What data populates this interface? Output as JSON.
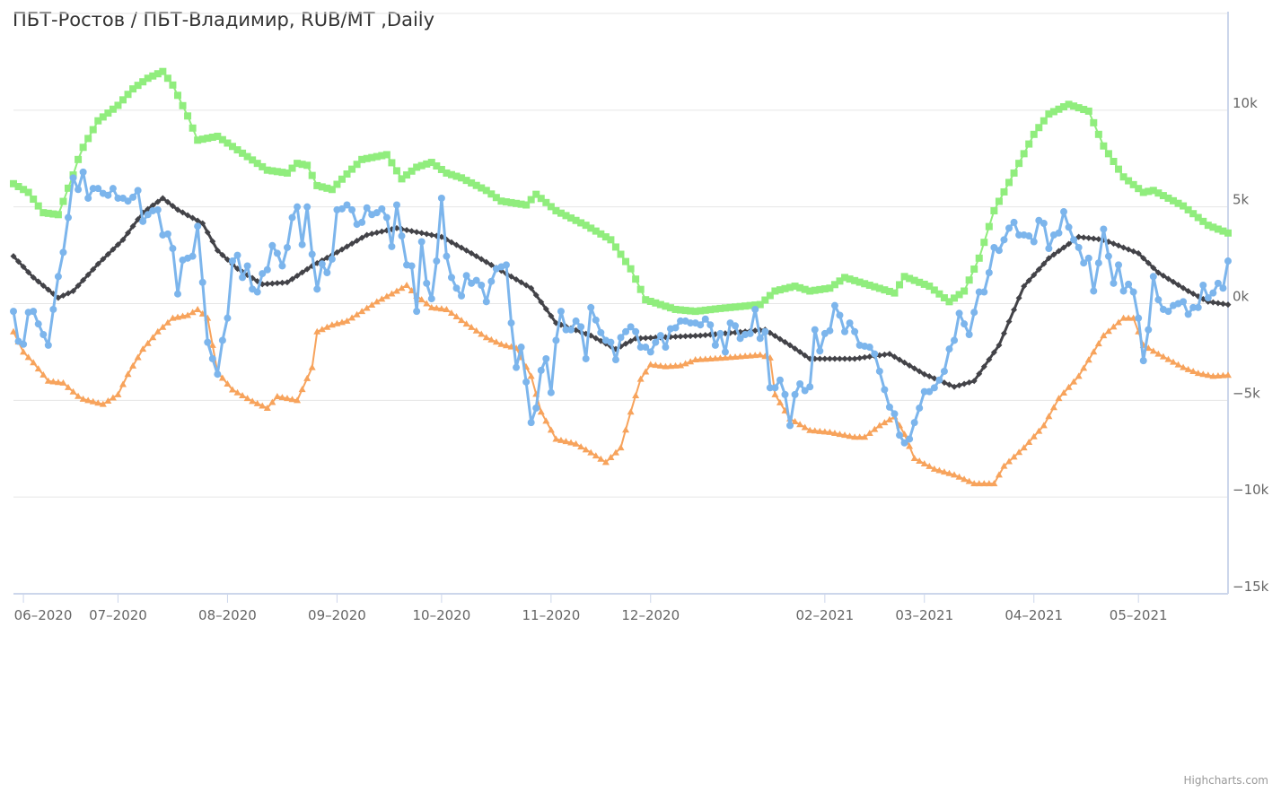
{
  "chart_data": {
    "type": "line",
    "title": "ПБТ-Ростов / ПБТ-Владимир, RUB/MT ,Daily",
    "xlabel": "",
    "ylabel": "",
    "x_type": "ordinal trading-day index",
    "x_range": [
      0,
      244
    ],
    "ylim": [
      -15000,
      15000
    ],
    "y_ticks": [
      {
        "value": 10000,
        "label": "10k"
      },
      {
        "value": 5000,
        "label": "5k"
      },
      {
        "value": 0,
        "label": "0k"
      },
      {
        "value": -5000,
        "label": "-5k"
      },
      {
        "value": -10000,
        "label": "-10k"
      },
      {
        "value": -15000,
        "label": "-15k"
      }
    ],
    "x_ticks": [
      {
        "index": 2,
        "label": "06-2020"
      },
      {
        "index": 21,
        "label": "07-2020"
      },
      {
        "index": 43,
        "label": "08-2020"
      },
      {
        "index": 65,
        "label": "09-2020"
      },
      {
        "index": 86,
        "label": "10-2020"
      },
      {
        "index": 108,
        "label": "11-2020"
      },
      {
        "index": 128,
        "label": "12-2020"
      },
      {
        "index": 163,
        "label": "02-2021"
      },
      {
        "index": 183,
        "label": "03-2021"
      },
      {
        "index": 205,
        "label": "04-2021"
      },
      {
        "index": 226,
        "label": "05-2021"
      }
    ],
    "grid": true,
    "legend": "none",
    "series": [
      {
        "id": "upper-band",
        "color": "#90ed7d",
        "marker": "square",
        "points": [
          [
            0,
            6200
          ],
          [
            3,
            5750
          ],
          [
            6,
            4700
          ],
          [
            9,
            4600
          ],
          [
            12,
            6650
          ],
          [
            13.5,
            7850
          ],
          [
            17,
            9450
          ],
          [
            21,
            10250
          ],
          [
            24,
            11100
          ],
          [
            27,
            11650
          ],
          [
            30,
            12000
          ],
          [
            32,
            11300
          ],
          [
            35,
            9700
          ],
          [
            37,
            8450
          ],
          [
            41,
            8650
          ],
          [
            43,
            8300
          ],
          [
            47,
            7600
          ],
          [
            51,
            6900
          ],
          [
            55,
            6750
          ],
          [
            57,
            7250
          ],
          [
            59,
            7150
          ],
          [
            61,
            6100
          ],
          [
            64,
            5900
          ],
          [
            67,
            6700
          ],
          [
            70,
            7450
          ],
          [
            75,
            7700
          ],
          [
            78,
            6450
          ],
          [
            81,
            7050
          ],
          [
            84,
            7300
          ],
          [
            87,
            6750
          ],
          [
            90,
            6500
          ],
          [
            95,
            5850
          ],
          [
            98,
            5300
          ],
          [
            103,
            5100
          ],
          [
            105,
            5650
          ],
          [
            109,
            4800
          ],
          [
            115,
            4050
          ],
          [
            120,
            3300
          ],
          [
            124,
            1800
          ],
          [
            127,
            200
          ],
          [
            133,
            -300
          ],
          [
            137,
            -400
          ],
          [
            142,
            -250
          ],
          [
            150,
            -50
          ],
          [
            153,
            650
          ],
          [
            157,
            900
          ],
          [
            160,
            650
          ],
          [
            164,
            800
          ],
          [
            167,
            1350
          ],
          [
            172,
            950
          ],
          [
            177,
            550
          ],
          [
            179,
            1400
          ],
          [
            184,
            900
          ],
          [
            188,
            100
          ],
          [
            191,
            650
          ],
          [
            194,
            2350
          ],
          [
            197,
            4800
          ],
          [
            201,
            6750
          ],
          [
            205,
            8750
          ],
          [
            208,
            9800
          ],
          [
            212,
            10300
          ],
          [
            216,
            9950
          ],
          [
            219,
            8150
          ],
          [
            223,
            6550
          ],
          [
            227,
            5750
          ],
          [
            229,
            5850
          ],
          [
            235,
            5050
          ],
          [
            240,
            4050
          ],
          [
            244,
            3650
          ]
        ]
      },
      {
        "id": "lower-band",
        "color": "#f7a35c",
        "marker": "triangle",
        "points": [
          [
            0,
            -1450
          ],
          [
            2,
            -2500
          ],
          [
            4,
            -3050
          ],
          [
            7,
            -4000
          ],
          [
            10,
            -4100
          ],
          [
            13.5,
            -4900
          ],
          [
            18,
            -5200
          ],
          [
            21,
            -4700
          ],
          [
            23,
            -3650
          ],
          [
            26,
            -2350
          ],
          [
            29,
            -1450
          ],
          [
            32,
            -750
          ],
          [
            35,
            -600
          ],
          [
            37,
            -300
          ],
          [
            39,
            -750
          ],
          [
            41,
            -3550
          ],
          [
            44,
            -4450
          ],
          [
            48,
            -5050
          ],
          [
            51,
            -5400
          ],
          [
            53,
            -4800
          ],
          [
            57,
            -5000
          ],
          [
            60,
            -3300
          ],
          [
            61,
            -1450
          ],
          [
            64,
            -1100
          ],
          [
            67,
            -900
          ],
          [
            73,
            100
          ],
          [
            77,
            650
          ],
          [
            79,
            950
          ],
          [
            81,
            400
          ],
          [
            84,
            -200
          ],
          [
            87,
            -300
          ],
          [
            91,
            -1050
          ],
          [
            95,
            -1750
          ],
          [
            98,
            -2100
          ],
          [
            101,
            -2300
          ],
          [
            104,
            -3750
          ],
          [
            106,
            -5600
          ],
          [
            109,
            -7000
          ],
          [
            113,
            -7250
          ],
          [
            116,
            -7700
          ],
          [
            119,
            -8200
          ],
          [
            122,
            -7450
          ],
          [
            124,
            -5600
          ],
          [
            126,
            -3900
          ],
          [
            128,
            -3150
          ],
          [
            131,
            -3250
          ],
          [
            134,
            -3200
          ],
          [
            137,
            -2900
          ],
          [
            143,
            -2800
          ],
          [
            150,
            -2650
          ],
          [
            152,
            -2800
          ],
          [
            153,
            -4700
          ],
          [
            156,
            -5950
          ],
          [
            160,
            -6550
          ],
          [
            164,
            -6650
          ],
          [
            169,
            -6900
          ],
          [
            171,
            -6900
          ],
          [
            174,
            -6300
          ],
          [
            177,
            -5850
          ],
          [
            179,
            -6750
          ],
          [
            181,
            -8000
          ],
          [
            185,
            -8550
          ],
          [
            189,
            -8850
          ],
          [
            193,
            -9300
          ],
          [
            197,
            -9300
          ],
          [
            199,
            -8400
          ],
          [
            203,
            -7450
          ],
          [
            207,
            -6300
          ],
          [
            210,
            -4900
          ],
          [
            214,
            -3750
          ],
          [
            219,
            -1650
          ],
          [
            223,
            -750
          ],
          [
            225,
            -750
          ],
          [
            227,
            -2150
          ],
          [
            230,
            -2600
          ],
          [
            235,
            -3300
          ],
          [
            238,
            -3600
          ],
          [
            241,
            -3750
          ],
          [
            244,
            -3700
          ]
        ]
      },
      {
        "id": "moving-average",
        "color": "#434348",
        "marker": "diamond",
        "points": [
          [
            0,
            2450
          ],
          [
            4,
            1350
          ],
          [
            9,
            300
          ],
          [
            12,
            650
          ],
          [
            17,
            2050
          ],
          [
            22,
            3300
          ],
          [
            26,
            4700
          ],
          [
            30,
            5450
          ],
          [
            33,
            4850
          ],
          [
            38,
            4150
          ],
          [
            41,
            2750
          ],
          [
            45,
            1800
          ],
          [
            50,
            1000
          ],
          [
            55,
            1100
          ],
          [
            60,
            1950
          ],
          [
            65,
            2650
          ],
          [
            71,
            3550
          ],
          [
            77,
            3900
          ],
          [
            86,
            3450
          ],
          [
            91,
            2750
          ],
          [
            98,
            1700
          ],
          [
            104,
            800
          ],
          [
            109,
            -1000
          ],
          [
            116,
            -1650
          ],
          [
            121,
            -2350
          ],
          [
            125,
            -1800
          ],
          [
            138,
            -1650
          ],
          [
            151,
            -1350
          ],
          [
            156,
            -2150
          ],
          [
            160,
            -2850
          ],
          [
            169,
            -2850
          ],
          [
            176,
            -2600
          ],
          [
            183,
            -3650
          ],
          [
            189,
            -4300
          ],
          [
            193,
            -4000
          ],
          [
            198,
            -2150
          ],
          [
            203,
            900
          ],
          [
            208,
            2350
          ],
          [
            214,
            3450
          ],
          [
            219,
            3300
          ],
          [
            226,
            2600
          ],
          [
            230,
            1600
          ],
          [
            236,
            650
          ],
          [
            240,
            100
          ],
          [
            244,
            -50
          ]
        ]
      },
      {
        "id": "spread",
        "color": "#7cb5ec",
        "marker": "circle",
        "values": [
          -400,
          -1950,
          -2100,
          -450,
          -400,
          -1050,
          -1600,
          -2150,
          -300,
          1400,
          2650,
          4450,
          6500,
          5900,
          6800,
          5450,
          5950,
          5950,
          5700,
          5600,
          5950,
          5450,
          5450,
          5300,
          5500,
          5850,
          4250,
          4600,
          4800,
          4850,
          3550,
          3600,
          2850,
          500,
          2250,
          2350,
          2450,
          4000,
          1100,
          -2000,
          -2850,
          -3650,
          -1900,
          -750,
          2200,
          2500,
          1350,
          1950,
          750,
          600,
          1550,
          1750,
          3000,
          2600,
          1950,
          2900,
          4450,
          5000,
          3050,
          5000,
          2550,
          750,
          2050,
          1600,
          2300,
          4850,
          4900,
          5100,
          4850,
          4100,
          4200,
          4950,
          4600,
          4700,
          4900,
          4450,
          2950,
          5100,
          3500,
          2000,
          1950,
          -400,
          3200,
          1050,
          250,
          2200,
          5450,
          2450,
          1350,
          800,
          400,
          1450,
          1050,
          1200,
          950,
          100,
          1150,
          1800,
          1900,
          2000,
          -1000,
          -3300,
          -2250,
          -4050,
          -6150,
          -5400,
          -3450,
          -2850,
          -4600,
          -1900,
          -400,
          -1350,
          -1350,
          -900,
          -1200,
          -2850,
          -200,
          -850,
          -1500,
          -1900,
          -2000,
          -2900,
          -1750,
          -1450,
          -1200,
          -1450,
          -2250,
          -2250,
          -2500,
          -2000,
          -1650,
          -2250,
          -1300,
          -1250,
          -900,
          -900,
          -1000,
          -1000,
          -1100,
          -800,
          -1100,
          -2150,
          -1550,
          -2500,
          -1000,
          -1150,
          -1800,
          -1600,
          -1550,
          -300,
          -1800,
          -1450,
          -4350,
          -4350,
          -3950,
          -4700,
          -6300,
          -4700,
          -4150,
          -4500,
          -4300,
          -1350,
          -2450,
          -1550,
          -1400,
          -100,
          -600,
          -1450,
          -1000,
          -1450,
          -2150,
          -2200,
          -2250,
          -2600,
          -3500,
          -4450,
          -5350,
          -5700,
          -6800,
          -7200,
          -7000,
          -6150,
          -5400,
          -4550,
          -4550,
          -4350,
          -3950,
          -3500,
          -2350,
          -1900,
          -500,
          -1050,
          -1600,
          -450,
          600,
          600,
          1600,
          2900,
          2750,
          3300,
          3900,
          4200,
          3550,
          3550,
          3500,
          3200,
          4300,
          4150,
          2850,
          3550,
          3650,
          4750,
          3950,
          3300,
          2900,
          2100,
          2350,
          650,
          2100,
          3850,
          2450,
          1050,
          2000,
          650,
          1000,
          600,
          -750,
          -2950,
          -1350,
          1400,
          200,
          -300,
          -400,
          -100,
          0,
          100,
          -550,
          -200,
          -200,
          950,
          300,
          550,
          1050,
          800,
          2200
        ]
      }
    ]
  },
  "credits": "Highcharts.com"
}
